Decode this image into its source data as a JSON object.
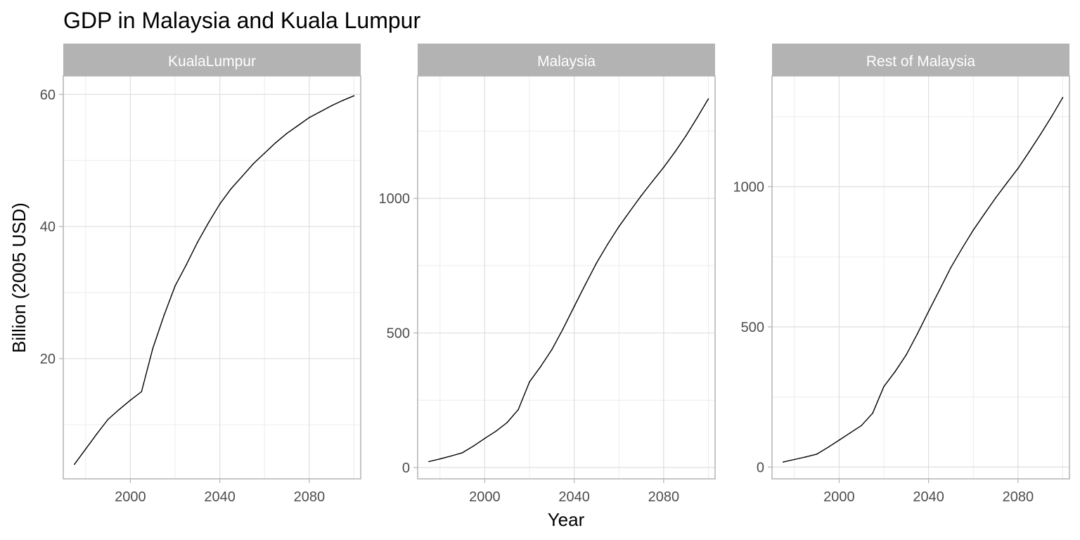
{
  "chart_data": {
    "type": "line",
    "title": "GDP in Malaysia and Kuala Lumpur",
    "xlabel": "Year",
    "ylabel": "Billion (2005 USD)",
    "grid": true,
    "line_color": "#000000",
    "strip_color": "#b3b3b3",
    "panels": [
      {
        "name": "KualaLumpur",
        "xlim": [
          1970,
          2103
        ],
        "ylim": [
          1.8,
          62.8
        ],
        "x_ticks": [
          2000,
          2040,
          2080
        ],
        "y_ticks": [
          20,
          40,
          60
        ],
        "series": [
          {
            "x": [
              1975,
              1980,
              1985,
              1990,
              1995,
              2000,
              2005,
              2010,
              2015,
              2020,
              2025,
              2030,
              2035,
              2040,
              2045,
              2050,
              2055,
              2060,
              2065,
              2070,
              2075,
              2080,
              2085,
              2090,
              2095,
              2100
            ],
            "y": [
              4.0,
              6.3,
              8.6,
              10.8,
              12.3,
              13.7,
              15.0,
              21.5,
              26.5,
              31.0,
              34.2,
              37.6,
              40.6,
              43.4,
              45.7,
              47.6,
              49.5,
              51.1,
              52.7,
              54.1,
              55.3,
              56.5,
              57.4,
              58.3,
              59.1,
              59.8
            ]
          }
        ]
      },
      {
        "name": "Malaysia",
        "xlim": [
          1970,
          2103
        ],
        "ylim": [
          -42,
          1455
        ],
        "x_ticks": [
          2000,
          2040,
          2080
        ],
        "y_ticks": [
          0,
          500,
          1000
        ],
        "series": [
          {
            "x": [
              1975,
              1980,
              1985,
              1990,
              1995,
              2000,
              2005,
              2010,
              2015,
              2020,
              2025,
              2030,
              2035,
              2040,
              2045,
              2050,
              2055,
              2060,
              2065,
              2070,
              2075,
              2080,
              2085,
              2090,
              2095,
              2100
            ],
            "y": [
              22,
              32,
              43,
              55,
              80,
              108,
              135,
              167,
              215,
              318,
              375,
              438,
              515,
              598,
              680,
              760,
              830,
              895,
              953,
              1010,
              1063,
              1115,
              1172,
              1233,
              1300,
              1370
            ]
          }
        ]
      },
      {
        "name": "Rest of Malaysia",
        "xlim": [
          1970,
          2103
        ],
        "ylim": [
          -42,
          1395
        ],
        "x_ticks": [
          2000,
          2040,
          2080
        ],
        "y_ticks": [
          0,
          500,
          1000
        ],
        "series": [
          {
            "x": [
              1975,
              1980,
              1985,
              1990,
              1995,
              2000,
              2005,
              2010,
              2015,
              2020,
              2025,
              2030,
              2035,
              2040,
              2045,
              2050,
              2055,
              2060,
              2065,
              2070,
              2075,
              2080,
              2085,
              2090,
              2095,
              2100
            ],
            "y": [
              18,
              27,
              36,
              46,
              70,
              96,
              122,
              148,
              192,
              287,
              340,
              400,
              475,
              555,
              633,
              712,
              780,
              845,
              903,
              960,
              1013,
              1065,
              1125,
              1186,
              1250,
              1318
            ]
          }
        ]
      }
    ]
  }
}
